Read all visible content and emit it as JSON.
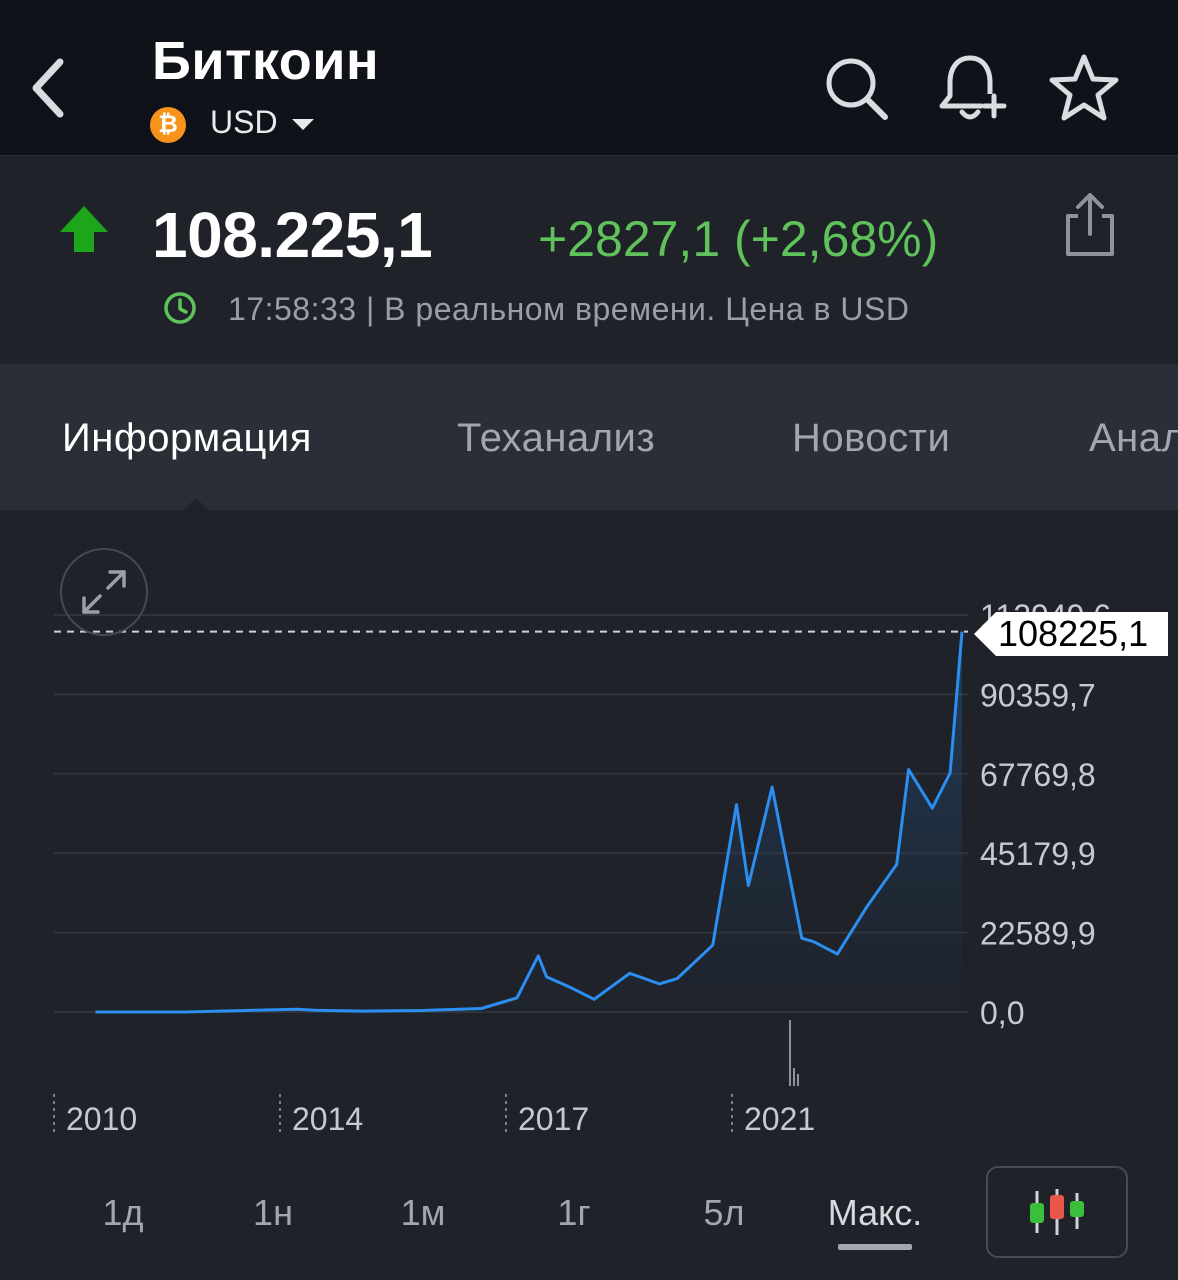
{
  "header": {
    "title": "Биткоин",
    "currency": "USD",
    "coin_symbol": "₿"
  },
  "quote": {
    "price": "108.225,1",
    "change": "+2827,1 (+2,68%)",
    "status": "17:58:33 | В реальном времени. Цена в USD",
    "direction": "up",
    "up_color": "#5fc25a"
  },
  "tabs": [
    {
      "label": "Информация",
      "active": true
    },
    {
      "label": "Теханализ",
      "active": false
    },
    {
      "label": "Новости",
      "active": false
    },
    {
      "label": "Анал",
      "active": false
    }
  ],
  "chart": {
    "current_label": "108225,1",
    "top_label": "112949,6",
    "y_ticks": [
      "90359,7",
      "67769,8",
      "45179,9",
      "22589,9",
      "0,0"
    ],
    "x_ticks": [
      "2010",
      "2014",
      "2017",
      "2021"
    ],
    "line_color": "#2b8ef0"
  },
  "chart_data": {
    "type": "area",
    "x": [
      2010.5,
      2012.0,
      2013.9,
      2014.2,
      2015.0,
      2016.0,
      2017.0,
      2017.6,
      2017.96,
      2018.1,
      2018.5,
      2018.9,
      2019.5,
      2020.0,
      2020.3,
      2020.9,
      2021.3,
      2021.5,
      2021.9,
      2022.4,
      2022.6,
      2023.0,
      2023.5,
      2024.0,
      2024.2,
      2024.6,
      2024.9,
      2025.1
    ],
    "y": [
      0.1,
      5,
      800,
      500,
      250,
      430,
      1000,
      4000,
      16000,
      10000,
      7000,
      3600,
      11000,
      8000,
      9500,
      19000,
      59000,
      36000,
      64000,
      21000,
      20000,
      16500,
      30000,
      42000,
      69000,
      58000,
      68000,
      108225.1
    ],
    "ylim": [
      0,
      112949.6
    ],
    "y_ticks": [
      0.0,
      22589.9,
      45179.9,
      67769.8,
      90359.7,
      112949.6
    ],
    "x_ticks": [
      "2010",
      "2014",
      "2017",
      "2021"
    ],
    "current_value": 108225.1
  },
  "ranges": [
    {
      "label": "1д",
      "active": false
    },
    {
      "label": "1н",
      "active": false
    },
    {
      "label": "1м",
      "active": false
    },
    {
      "label": "1г",
      "active": false
    },
    {
      "label": "5л",
      "active": false
    },
    {
      "label": "Макс.",
      "active": true
    }
  ]
}
